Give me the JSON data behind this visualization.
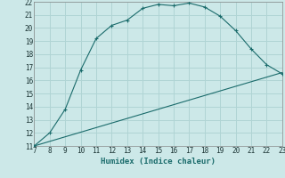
{
  "xlabel": "Humidex (Indice chaleur)",
  "bg_color": "#cce8e8",
  "grid_color": "#b0d4d4",
  "line_color": "#1a6b6b",
  "xlim": [
    7,
    23
  ],
  "ylim": [
    11,
    22
  ],
  "xticks": [
    7,
    8,
    9,
    10,
    11,
    12,
    13,
    14,
    15,
    16,
    17,
    18,
    19,
    20,
    21,
    22,
    23
  ],
  "yticks": [
    11,
    12,
    13,
    14,
    15,
    16,
    17,
    18,
    19,
    20,
    21,
    22
  ],
  "curve1_x": [
    7,
    8,
    9,
    10,
    11,
    12,
    13,
    14,
    15,
    16,
    17,
    18,
    19,
    20,
    21,
    22,
    23
  ],
  "curve1_y": [
    11.0,
    12.0,
    13.8,
    16.8,
    19.2,
    20.2,
    20.6,
    21.5,
    21.8,
    21.7,
    21.9,
    21.6,
    20.9,
    19.8,
    18.4,
    17.2,
    16.5
  ],
  "curve2_x": [
    7,
    23
  ],
  "curve2_y": [
    11.0,
    16.6
  ],
  "marker_x": [
    7,
    8,
    9,
    10,
    11,
    12,
    13,
    14,
    15,
    16,
    17,
    18,
    19,
    20,
    21,
    22,
    23
  ],
  "marker_y": [
    11.0,
    12.0,
    13.8,
    16.8,
    19.2,
    20.2,
    20.6,
    21.5,
    21.8,
    21.7,
    21.9,
    21.6,
    20.9,
    19.8,
    18.4,
    17.2,
    16.5
  ]
}
